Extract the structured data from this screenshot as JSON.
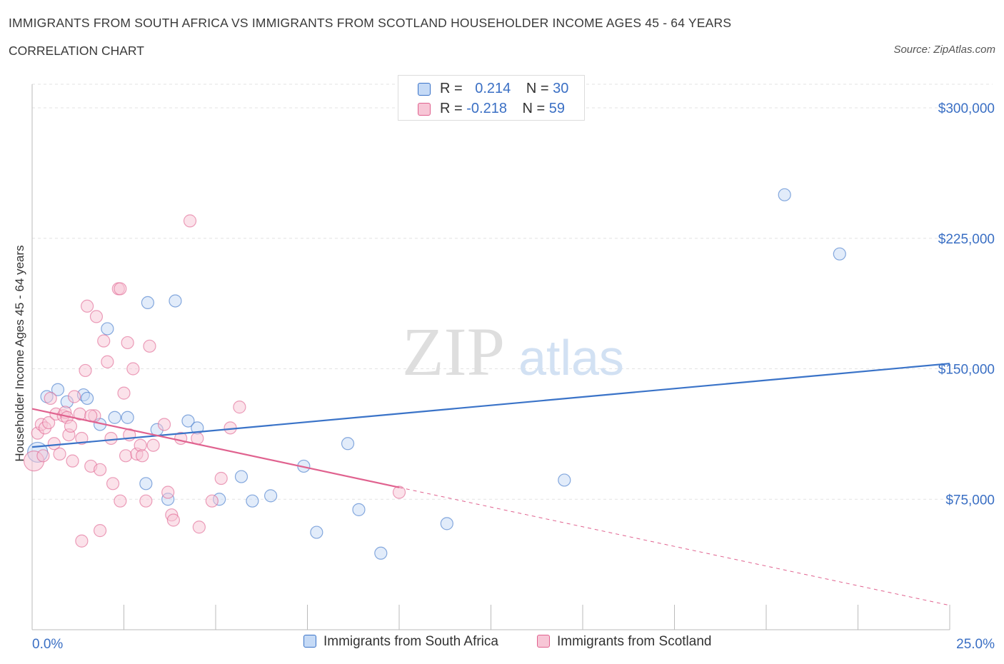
{
  "header": {
    "title": "IMMIGRANTS FROM SOUTH AFRICA VS IMMIGRANTS FROM SCOTLAND HOUSEHOLDER INCOME AGES 45 - 64 YEARS",
    "subtitle": "CORRELATION CHART",
    "source": "Source: ZipAtlas.com"
  },
  "watermark": {
    "zip": "ZIP",
    "atlas": "atlas"
  },
  "colors": {
    "blue": "#3a73c8",
    "blue_fill": "#c5daf6",
    "pink": "#e0628f",
    "pink_fill": "#f7c6d6",
    "axis_value": "#3a6fc4"
  },
  "legend_top": [
    {
      "r_label": "R =",
      "r_value": "0.214",
      "n_label": "N =",
      "n_value": "30"
    },
    {
      "r_label": "R =",
      "r_value": "-0.218",
      "n_label": "N =",
      "n_value": "59"
    }
  ],
  "chart_data": {
    "type": "scatter",
    "xlabel": "",
    "ylabel": "Householder Income Ages 45 - 64 years",
    "xlim": [
      0,
      25
    ],
    "ylim": [
      0,
      300000
    ],
    "x_tick_labels": [
      "0.0%",
      "25.0%"
    ],
    "y_ticks": [
      {
        "value": 75000,
        "label": "$75,000"
      },
      {
        "value": 150000,
        "label": "$150,000"
      },
      {
        "value": 225000,
        "label": "$225,000"
      },
      {
        "value": 300000,
        "label": "$300,000"
      }
    ],
    "grid": true,
    "legend_position": "bottom",
    "series": [
      {
        "name": "Immigrants from South Africa",
        "color": "#3a73c8",
        "trend": {
          "x0": 0,
          "y0": 105000,
          "x1": 25,
          "y1": 153000,
          "solid_to": 25
        },
        "points": [
          [
            0.15,
            102000
          ],
          [
            0.4,
            134000
          ],
          [
            0.7,
            138000
          ],
          [
            0.95,
            131000
          ],
          [
            1.4,
            135000
          ],
          [
            1.5,
            133000
          ],
          [
            1.85,
            118000
          ],
          [
            2.05,
            173000
          ],
          [
            2.25,
            122000
          ],
          [
            2.6,
            122000
          ],
          [
            3.1,
            84000
          ],
          [
            3.15,
            188000
          ],
          [
            3.4,
            115000
          ],
          [
            3.7,
            75000
          ],
          [
            3.9,
            189000
          ],
          [
            4.25,
            120000
          ],
          [
            4.5,
            116000
          ],
          [
            5.1,
            75000
          ],
          [
            5.7,
            88000
          ],
          [
            6.0,
            74000
          ],
          [
            6.5,
            77000
          ],
          [
            7.4,
            94000
          ],
          [
            7.75,
            56000
          ],
          [
            8.6,
            107000
          ],
          [
            8.9,
            69000
          ],
          [
            9.5,
            44000
          ],
          [
            11.3,
            61000
          ],
          [
            14.5,
            86000
          ],
          [
            20.5,
            250000
          ],
          [
            22.0,
            216000
          ]
        ]
      },
      {
        "name": "Immigrants from Scotland",
        "color": "#e0628f",
        "trend": {
          "x0": 0,
          "y0": 127000,
          "x1": 25,
          "y1": 14000,
          "solid_to": 10
        },
        "points": [
          [
            0.05,
            97000
          ],
          [
            0.15,
            113000
          ],
          [
            0.25,
            118000
          ],
          [
            0.35,
            116000
          ],
          [
            0.45,
            119000
          ],
          [
            0.5,
            133000
          ],
          [
            0.6,
            107000
          ],
          [
            0.65,
            124000
          ],
          [
            0.75,
            101000
          ],
          [
            0.85,
            123000
          ],
          [
            0.9,
            125000
          ],
          [
            0.95,
            122000
          ],
          [
            1.0,
            112000
          ],
          [
            1.05,
            117000
          ],
          [
            1.1,
            97000
          ],
          [
            1.15,
            134000
          ],
          [
            1.3,
            124000
          ],
          [
            1.35,
            110000
          ],
          [
            1.45,
            149000
          ],
          [
            1.5,
            186000
          ],
          [
            1.6,
            94000
          ],
          [
            1.7,
            123000
          ],
          [
            1.75,
            180000
          ],
          [
            1.85,
            92000
          ],
          [
            1.95,
            166000
          ],
          [
            2.05,
            154000
          ],
          [
            2.15,
            110000
          ],
          [
            2.2,
            84000
          ],
          [
            2.35,
            196000
          ],
          [
            2.4,
            196000
          ],
          [
            2.5,
            136000
          ],
          [
            2.55,
            100000
          ],
          [
            2.6,
            165000
          ],
          [
            2.65,
            112000
          ],
          [
            2.75,
            150000
          ],
          [
            2.85,
            101000
          ],
          [
            2.95,
            106000
          ],
          [
            3.0,
            100000
          ],
          [
            3.1,
            74000
          ],
          [
            3.2,
            163000
          ],
          [
            3.3,
            106000
          ],
          [
            3.6,
            118000
          ],
          [
            3.7,
            79000
          ],
          [
            3.8,
            66000
          ],
          [
            3.85,
            63000
          ],
          [
            4.05,
            110000
          ],
          [
            4.3,
            235000
          ],
          [
            4.55,
            59000
          ],
          [
            4.9,
            74000
          ],
          [
            5.15,
            87000
          ],
          [
            5.4,
            116000
          ],
          [
            5.65,
            128000
          ],
          [
            1.35,
            51000
          ],
          [
            1.85,
            57000
          ],
          [
            2.4,
            74000
          ],
          [
            0.3,
            100000
          ],
          [
            1.6,
            123000
          ],
          [
            4.5,
            110000
          ],
          [
            10.0,
            79000
          ]
        ]
      }
    ]
  }
}
